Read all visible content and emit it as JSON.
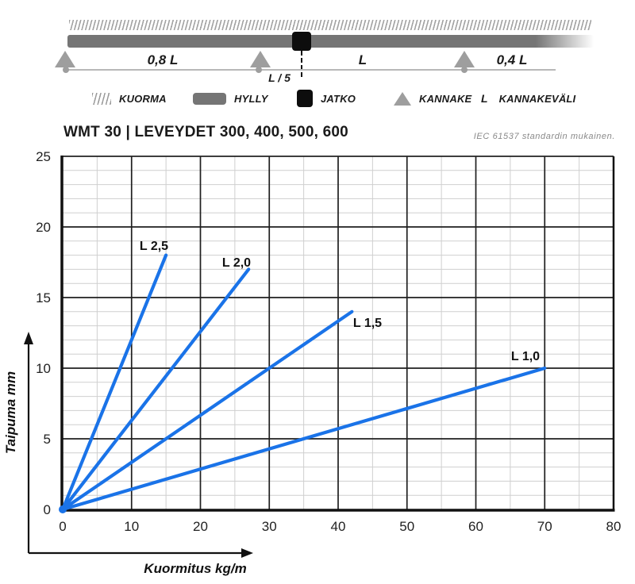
{
  "schematic": {
    "span_labels": [
      "0,8 L",
      "L",
      "0,4 L"
    ],
    "joint_offset_label": "L / 5"
  },
  "legend": {
    "items": [
      {
        "icon": "hatch-swatch",
        "label": "KUORMA"
      },
      {
        "icon": "shelf-swatch",
        "label": "HYLLY"
      },
      {
        "icon": "joint-swatch",
        "label": "JATKO"
      },
      {
        "icon": "support-swatch",
        "label": "KANNAKE"
      },
      {
        "icon": "letter-symbol",
        "symbol": "L",
        "label": "KANNAKEVÄLI"
      }
    ]
  },
  "chart_data": {
    "type": "line",
    "title": "WMT 30 | LEVEYDET 300, 400, 500, 600",
    "note": "IEC 61537 standardin mukainen.",
    "xlabel": "Kuormitus kg/m",
    "ylabel": "Taipuma mm",
    "xlim": [
      0,
      80
    ],
    "ylim": [
      0,
      25
    ],
    "x_major_ticks": [
      0,
      10,
      20,
      30,
      40,
      50,
      60,
      70,
      80
    ],
    "y_major_ticks": [
      0,
      5,
      10,
      15,
      20,
      25
    ],
    "x_minor_step": 5,
    "y_minor_step": 1,
    "grid": true,
    "legend_position": "inline-labels",
    "line_color": "#1a73e8",
    "series": [
      {
        "name": "L 2,5",
        "points": [
          [
            0,
            0
          ],
          [
            15,
            18
          ]
        ]
      },
      {
        "name": "L 2,0",
        "points": [
          [
            0,
            0
          ],
          [
            27,
            17
          ]
        ]
      },
      {
        "name": "L 1,5",
        "points": [
          [
            0,
            0
          ],
          [
            42,
            14
          ]
        ]
      },
      {
        "name": "L 1,0",
        "points": [
          [
            0,
            0
          ],
          [
            70,
            10
          ]
        ]
      }
    ]
  }
}
